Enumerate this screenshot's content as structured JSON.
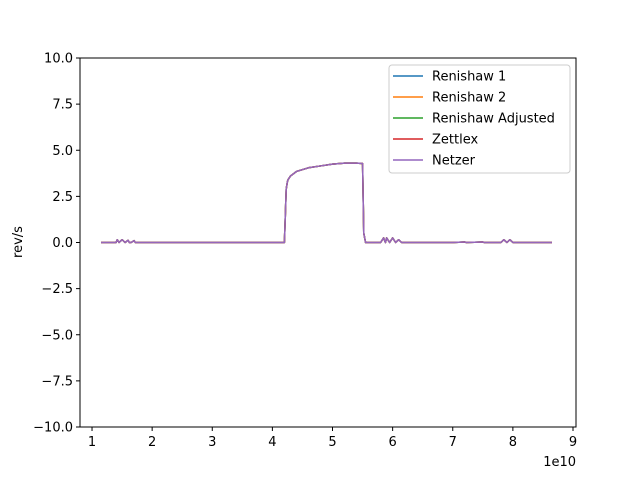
{
  "chart_data": {
    "type": "line",
    "title": "",
    "xlabel": "",
    "ylabel": "rev/s",
    "x_offset_label": "1e10",
    "xlim": [
      0.8,
      9.05
    ],
    "ylim": [
      -10.0,
      10.0
    ],
    "xticks": [
      1,
      2,
      3,
      4,
      5,
      6,
      7,
      8,
      9
    ],
    "xtick_labels": [
      "1",
      "2",
      "3",
      "4",
      "5",
      "6",
      "7",
      "8",
      "9"
    ],
    "yticks": [
      -10.0,
      -7.5,
      -5.0,
      -2.5,
      0.0,
      2.5,
      5.0,
      7.5,
      10.0
    ],
    "ytick_labels": [
      "−10.0",
      "−7.5",
      "−5.0",
      "−2.5",
      "0.0",
      "2.5",
      "5.0",
      "7.5",
      "10.0"
    ],
    "grid": false,
    "legend_position": "top-right",
    "x": [
      1.15,
      1.4,
      1.42,
      1.45,
      1.5,
      1.55,
      1.6,
      1.62,
      1.65,
      1.7,
      1.72,
      1.75,
      2.0,
      3.0,
      4.0,
      4.2,
      4.23,
      4.25,
      4.26,
      4.3,
      4.4,
      4.6,
      4.8,
      5.0,
      5.2,
      5.4,
      5.5,
      5.52,
      5.55,
      5.8,
      5.85,
      5.88,
      5.9,
      5.95,
      6.0,
      6.05,
      6.1,
      6.15,
      6.3,
      7.0,
      7.2,
      7.22,
      7.5,
      7.52,
      7.8,
      7.85,
      7.9,
      7.95,
      8.0,
      8.05,
      8.65
    ],
    "series": [
      {
        "name": "Renishaw 1",
        "color": "#1f77b4",
        "values": [
          0.0,
          0.0,
          0.15,
          0.0,
          0.15,
          0.0,
          0.12,
          0.0,
          0.0,
          0.1,
          0.0,
          0.0,
          0.0,
          0.0,
          0.0,
          0.0,
          2.9,
          3.3,
          3.4,
          3.6,
          3.85,
          4.05,
          4.15,
          4.25,
          4.3,
          4.3,
          4.28,
          0.5,
          0.0,
          0.0,
          0.25,
          0.0,
          0.25,
          0.0,
          0.25,
          0.0,
          0.15,
          0.0,
          0.0,
          0.0,
          0.03,
          0.0,
          0.03,
          0.0,
          0.0,
          0.15,
          0.0,
          0.15,
          0.0,
          0.0,
          0.0
        ]
      },
      {
        "name": "Renishaw 2",
        "color": "#ff7f0e",
        "values": [
          0.0,
          0.0,
          0.15,
          0.0,
          0.15,
          0.0,
          0.12,
          0.0,
          0.0,
          0.1,
          0.0,
          0.0,
          0.0,
          0.0,
          0.0,
          0.0,
          2.9,
          3.3,
          3.4,
          3.6,
          3.85,
          4.05,
          4.15,
          4.25,
          4.3,
          4.3,
          4.28,
          0.5,
          0.0,
          0.0,
          0.25,
          0.0,
          0.25,
          0.0,
          0.25,
          0.0,
          0.15,
          0.0,
          0.0,
          0.0,
          0.03,
          0.0,
          0.03,
          0.0,
          0.0,
          0.15,
          0.0,
          0.15,
          0.0,
          0.0,
          0.0
        ]
      },
      {
        "name": "Renishaw Adjusted",
        "color": "#2ca02c",
        "values": [
          0.0,
          0.0,
          0.15,
          0.0,
          0.15,
          0.0,
          0.12,
          0.0,
          0.0,
          0.1,
          0.0,
          0.0,
          0.0,
          0.0,
          0.0,
          0.0,
          2.9,
          3.3,
          3.4,
          3.6,
          3.85,
          4.05,
          4.15,
          4.25,
          4.3,
          4.3,
          4.28,
          0.5,
          0.0,
          0.0,
          0.25,
          0.0,
          0.25,
          0.0,
          0.25,
          0.0,
          0.15,
          0.0,
          0.0,
          0.0,
          0.03,
          0.0,
          0.03,
          0.0,
          0.0,
          0.15,
          0.0,
          0.15,
          0.0,
          0.0,
          0.0
        ]
      },
      {
        "name": "Zettlex",
        "color": "#d62728",
        "values": [
          0.0,
          0.0,
          0.15,
          0.0,
          0.15,
          0.0,
          0.12,
          0.0,
          0.0,
          0.1,
          0.0,
          0.0,
          0.0,
          0.0,
          0.0,
          0.0,
          2.9,
          3.3,
          3.4,
          3.6,
          3.85,
          4.05,
          4.15,
          4.25,
          4.3,
          4.3,
          4.28,
          0.5,
          0.0,
          0.0,
          0.25,
          0.0,
          0.25,
          0.0,
          0.25,
          0.0,
          0.15,
          0.0,
          0.0,
          0.0,
          0.03,
          0.0,
          0.03,
          0.0,
          0.0,
          0.15,
          0.0,
          0.15,
          0.0,
          0.0,
          0.0
        ]
      },
      {
        "name": "Netzer",
        "color": "#9467bd",
        "values": [
          0.0,
          0.0,
          0.15,
          0.0,
          0.15,
          0.0,
          0.12,
          0.0,
          0.0,
          0.1,
          0.0,
          0.0,
          0.0,
          0.0,
          0.0,
          0.0,
          2.9,
          3.3,
          3.4,
          3.6,
          3.85,
          4.05,
          4.15,
          4.25,
          4.3,
          4.3,
          4.28,
          0.5,
          0.0,
          0.0,
          0.25,
          0.0,
          0.25,
          0.0,
          0.25,
          0.0,
          0.15,
          0.0,
          0.0,
          0.0,
          0.03,
          0.0,
          0.03,
          0.0,
          0.0,
          0.15,
          0.0,
          0.15,
          0.0,
          0.0,
          0.0
        ]
      }
    ]
  }
}
